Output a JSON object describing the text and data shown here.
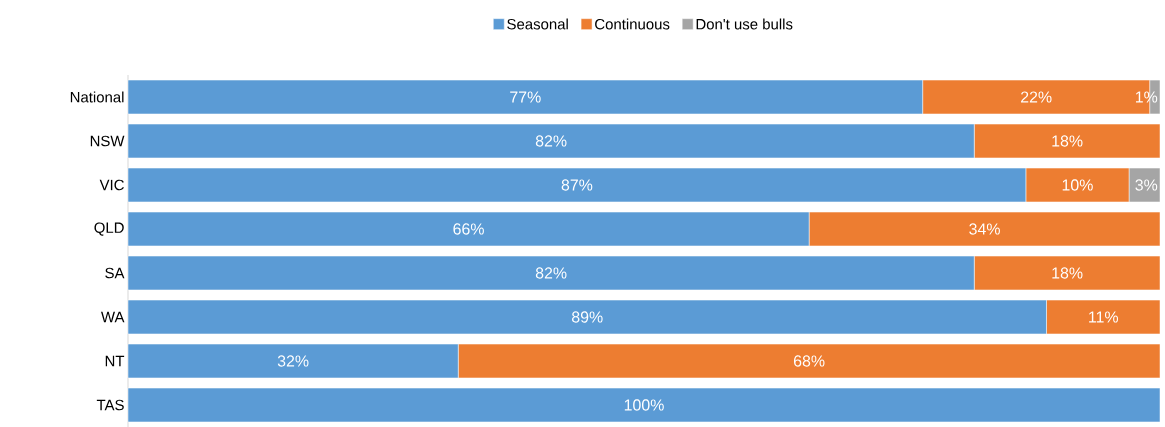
{
  "chart_data": {
    "type": "bar",
    "orientation": "horizontal",
    "stacked": true,
    "legend": "top",
    "tick_labels": "y",
    "categories": [
      "National",
      "NSW",
      "VIC",
      "QLD",
      "SA",
      "WA",
      "NT",
      "TAS"
    ],
    "series": [
      {
        "name": "Seasonal",
        "color": "#5b9bd5",
        "values": [
          77,
          82,
          87,
          66,
          82,
          89,
          32,
          100
        ],
        "value_labels": [
          "77%",
          "82%",
          "87%",
          "66%",
          "82%",
          "89%",
          "32%",
          "100%"
        ]
      },
      {
        "name": "Continuous",
        "color": "#ed7d31",
        "values": [
          22,
          18,
          10,
          34,
          18,
          11,
          68,
          0
        ],
        "value_labels": [
          "22%",
          "18%",
          "10%",
          "34%",
          "18%",
          "11%",
          "68%",
          null
        ]
      },
      {
        "name": "Don't use bulls",
        "color": "#a5a5a5",
        "values": [
          1,
          0,
          3,
          0,
          0,
          0,
          0,
          0
        ],
        "value_labels": [
          "1%",
          null,
          "3%",
          null,
          null,
          null,
          null,
          null
        ]
      }
    ]
  }
}
